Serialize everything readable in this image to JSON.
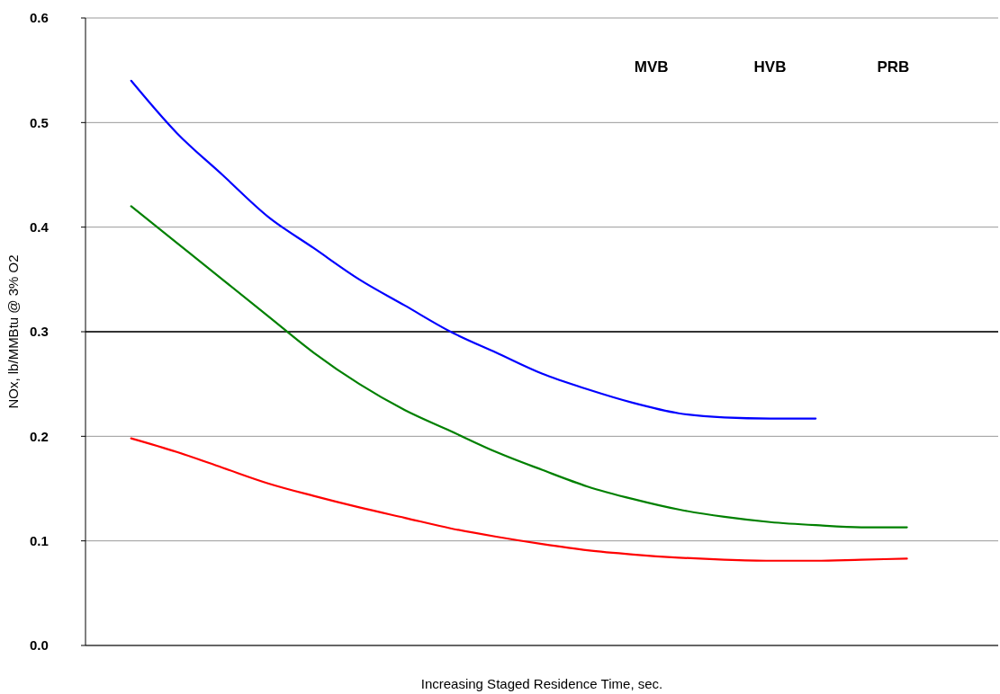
{
  "chart_data": {
    "type": "line",
    "xlabel": "Increasing Staged Residence Time, sec.",
    "ylabel": "NOx, lb/MMBtu @ 3% O2",
    "categories": [
      null,
      null,
      null,
      null,
      null,
      null,
      null,
      null,
      null,
      null,
      null,
      null,
      null,
      null,
      null,
      null,
      null,
      null,
      null,
      null,
      null
    ],
    "series": [
      {
        "color": "#0000ff",
        "values": [
          null,
          0.54,
          0.49,
          0.45,
          0.41,
          0.38,
          0.35,
          0.325,
          0.3,
          0.28,
          0.26,
          0.245,
          0.232,
          0.222,
          0.218,
          0.217,
          0.217,
          null,
          null,
          null,
          null
        ]
      },
      {
        "color": "#008000",
        "values": [
          null,
          0.42,
          0.385,
          0.35,
          0.315,
          0.28,
          0.25,
          0.225,
          0.205,
          0.185,
          0.168,
          0.152,
          0.14,
          0.13,
          0.123,
          0.118,
          0.115,
          0.113,
          0.113,
          null,
          null
        ]
      },
      {
        "color": "#ff0000",
        "values": [
          null,
          0.198,
          0.185,
          0.17,
          0.155,
          0.143,
          0.132,
          0.122,
          0.112,
          0.104,
          0.097,
          0.091,
          0.087,
          0.084,
          0.082,
          0.081,
          0.081,
          0.082,
          0.083,
          null,
          null
        ]
      }
    ],
    "ylim": [
      0,
      0.6
    ],
    "yticks": [
      {
        "value": 0,
        "label": "0.0"
      },
      0.1,
      0.2,
      0.3,
      0.4,
      0.5,
      0.6
    ],
    "grid": "y",
    "ref_lines": [
      {
        "axis": "y",
        "value": 0.3,
        "color": "#000000"
      }
    ],
    "annotations": [
      "MVB",
      "HVB",
      "PRB"
    ],
    "marker": "none",
    "line_style": "solid"
  }
}
